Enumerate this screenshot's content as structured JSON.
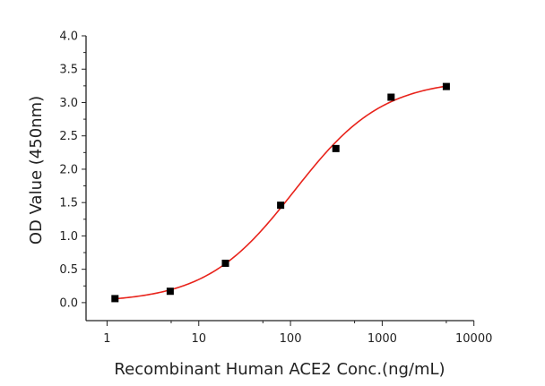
{
  "chart_data": {
    "type": "scatter",
    "title": "",
    "xlabel": "Recombinant Human ACE2 Conc.(ng/mL)",
    "ylabel": "OD Value (450nm)",
    "xscale": "log",
    "xlim": [
      0.59,
      10000
    ],
    "ylim": [
      -0.27,
      4.0
    ],
    "xticks": [
      1,
      10,
      100,
      1000,
      10000
    ],
    "xtick_labels": [
      "1",
      "10",
      "100",
      "1000",
      "10000"
    ],
    "yticks": [
      0.0,
      0.5,
      1.0,
      1.5,
      2.0,
      2.5,
      3.0,
      3.5,
      4.0
    ],
    "ytick_labels": [
      "0.0",
      "0.5",
      "1.0",
      "1.5",
      "2.0",
      "2.5",
      "3.0",
      "3.5",
      "4.0"
    ],
    "grid": false,
    "legend": "none",
    "series": [
      {
        "marker": "square",
        "color": "#000000",
        "x": [
          1.22,
          4.88,
          19.53,
          78.13,
          312.5,
          1250,
          5000
        ],
        "y": [
          0.06,
          0.17,
          0.59,
          1.46,
          2.31,
          3.08,
          3.24
        ]
      }
    ],
    "fit": {
      "model": "4-parameter logistic",
      "color": "#e8231b",
      "A1": 0.0,
      "A2": 3.35,
      "x0": 110,
      "p": 0.9
    }
  }
}
